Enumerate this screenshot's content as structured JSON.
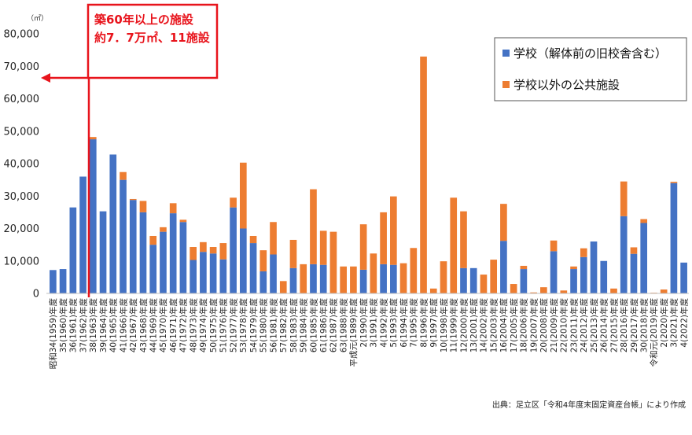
{
  "chart_data": {
    "type": "bar",
    "stacked": true,
    "unit": "（㎡）",
    "ylim": [
      0,
      80000
    ],
    "yticks": [
      "0",
      "10,000",
      "20,000",
      "30,000",
      "40,000",
      "50,000",
      "60,000",
      "70,000",
      "80,000"
    ],
    "grid": false,
    "legend_position": "top-right",
    "categories": [
      "昭和34(1959)年度",
      "35(1960)年度",
      "36(1961)年度",
      "37(1962)年度",
      "38(1963)年度",
      "39(1964)年度",
      "40(1965)年度",
      "41(1966)年度",
      "42(1967)年度",
      "43(1968)年度",
      "44(1969)年度",
      "45(1970)年度",
      "46(1971)年度",
      "47(1972)年度",
      "48(1973)年度",
      "49(1974)年度",
      "50(1975)年度",
      "51(1976)年度",
      "52(1977)年度",
      "53(1978)年度",
      "54(1979)年度",
      "55(1980)年度",
      "56(1981)年度",
      "57(1982)年度",
      "58(1983)年度",
      "59(1984)年度",
      "60(1985)年度",
      "61(1986)年度",
      "62(1987)年度",
      "63(1988)年度",
      "平成元(1989)年度",
      "2(1990)年度",
      "3(1991)年度",
      "4(1992)年度",
      "5(1993)年度",
      "6(1994)年度",
      "7(1995)年度",
      "8(1996)年度",
      "9(1997)年度",
      "10(1998)年度",
      "11(1999)年度",
      "12(2000)年度",
      "13(2001)年度",
      "14(2002)年度",
      "15(2003)年度",
      "16(2004)年度",
      "17(2005)年度",
      "18(2006)年度",
      "19(2007)年度",
      "20(2008)年度",
      "21(2009)年度",
      "22(2010)年度",
      "23(2011)年度",
      "24(2012)年度",
      "25(2013)年度",
      "26(2014)年度",
      "27(2015)年度",
      "28(2016)年度",
      "29(2017)年度",
      "30(2018)年度",
      "令和元(2019)年度",
      "2(2020)年度",
      "3(2021)年度",
      "4(2022)年度"
    ],
    "series": [
      {
        "name": "学校（解体前の旧校舎含む）",
        "color": "#4472c4",
        "values": [
          7200,
          7500,
          26500,
          36000,
          47500,
          25300,
          42800,
          35000,
          28800,
          25000,
          15000,
          19000,
          24700,
          22000,
          10300,
          12800,
          12300,
          10500,
          26500,
          20000,
          15500,
          6800,
          12000,
          0,
          7800,
          0,
          9000,
          8800,
          0,
          0,
          0,
          7300,
          0,
          9000,
          8800,
          0,
          0,
          0,
          0,
          0,
          0,
          7800,
          7800,
          0,
          0,
          16200,
          0,
          7500,
          0,
          0,
          13000,
          0,
          7500,
          11200,
          16000,
          10000,
          0,
          23800,
          12200,
          21700,
          0,
          0,
          34000,
          9500
        ]
      },
      {
        "name": "学校以外の公共施設",
        "color": "#ed7d31",
        "values": [
          0,
          0,
          0,
          0,
          700,
          0,
          0,
          2400,
          300,
          3500,
          2700,
          1400,
          3100,
          700,
          4000,
          3000,
          2000,
          5000,
          3000,
          20300,
          2200,
          6500,
          10000,
          3800,
          8700,
          9000,
          23100,
          10500,
          19000,
          8300,
          8300,
          14000,
          12300,
          16000,
          21100,
          9300,
          14000,
          73000,
          1500,
          9900,
          29500,
          17500,
          0,
          5800,
          10400,
          11400,
          2900,
          1000,
          300,
          1900,
          3300,
          900,
          800,
          2700,
          0,
          0,
          1500,
          10700,
          2000,
          1200,
          200,
          1200,
          400,
          0
        ]
      }
    ],
    "annotation": {
      "lines": [
        "築60年以上の施設",
        "約7．7万㎡、11施設"
      ],
      "color": "#e8141c"
    },
    "source": "出典：足立区「令和4年度末固定資産台帳」により作成"
  }
}
